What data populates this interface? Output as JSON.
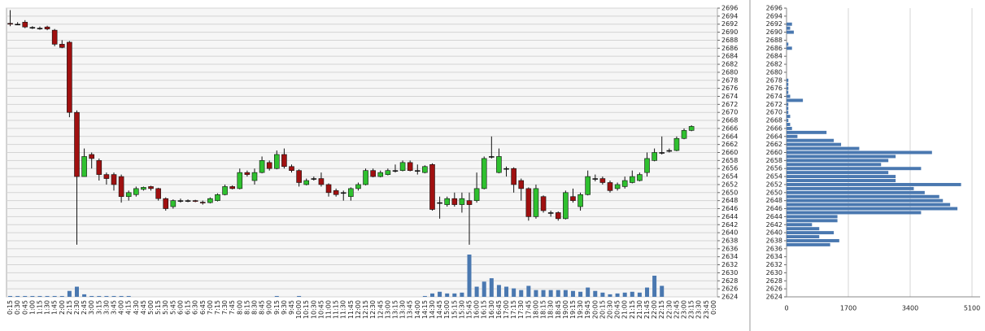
{
  "chart_data": [
    {
      "type": "candlestick",
      "categories": [
        "0:15",
        "0:30",
        "0:45",
        "1:00",
        "1:15",
        "1:30",
        "1:45",
        "2:00",
        "2:15",
        "2:30",
        "2:45",
        "3:00",
        "3:15",
        "3:30",
        "3:45",
        "4:00",
        "4:15",
        "4:30",
        "4:45",
        "5:00",
        "5:15",
        "5:30",
        "5:45",
        "6:00",
        "6:15",
        "6:30",
        "6:45",
        "7:00",
        "7:15",
        "7:30",
        "7:45",
        "8:00",
        "8:15",
        "8:30",
        "8:45",
        "9:00",
        "9:15",
        "9:30",
        "9:45",
        "10:00",
        "10:15",
        "10:30",
        "10:45",
        "11:00",
        "11:15",
        "11:30",
        "11:45",
        "12:00",
        "12:15",
        "12:30",
        "12:45",
        "13:00",
        "13:15",
        "13:30",
        "13:45",
        "14:00",
        "14:15",
        "14:30",
        "14:45",
        "15:00",
        "15:15",
        "15:30",
        "15:45",
        "16:00",
        "16:15",
        "16:30",
        "16:45",
        "17:00",
        "17:15",
        "17:30",
        "17:45",
        "18:00",
        "18:15",
        "18:30",
        "18:45",
        "19:00",
        "19:15",
        "19:30",
        "19:45",
        "20:00",
        "20:15",
        "20:30",
        "20:45",
        "21:00",
        "21:15",
        "21:30",
        "21:45",
        "22:00",
        "22:15",
        "22:30",
        "22:45",
        "23:00",
        "23:15",
        "23:30",
        "23:45",
        "0:00"
      ],
      "open": [
        2692.2,
        2692,
        2692.5,
        2691.2,
        2691,
        2691.3,
        2690.5,
        2687,
        2687.5,
        2670,
        2654,
        2659.5,
        2658,
        2654.5,
        2654.5,
        2654,
        2649,
        2649.5,
        2650.8,
        2651.5,
        2651,
        2648.5,
        2646.5,
        2648,
        2648,
        2648,
        2647.6,
        2647.5,
        2648,
        2649.5,
        2651.5,
        2651,
        2655,
        2653,
        2655,
        2657.5,
        2656,
        2659.5,
        2656.5,
        2655.5,
        2652,
        2653.5,
        2653.5,
        2652,
        2650.5,
        2650,
        2649,
        2651,
        2652,
        2655.5,
        2654,
        2654.5,
        2655.5,
        2655.5,
        2657.5,
        2655.5,
        2655,
        2657,
        2647.5,
        2647,
        2648.5,
        2647,
        2648,
        2648,
        2651,
        2659,
        2655,
        2656,
        2656,
        2653,
        2651,
        2644,
        2649,
        2645,
        2645,
        2643.5,
        2649,
        2646.5,
        2649.5,
        2653.5,
        2653.5,
        2652.5,
        2651,
        2651.5,
        2652.5,
        2653,
        2655,
        2658,
        2660,
        2660.5,
        2660.5,
        2663.5,
        2665.5,
        null,
        null,
        null
      ],
      "high": [
        2695.5,
        2692.5,
        2693,
        2691.5,
        2691.4,
        2691.6,
        2690.8,
        2688,
        2687.8,
        2670.5,
        2661,
        2660,
        2658.5,
        2655,
        2655,
        2654.5,
        2650.5,
        2651.5,
        2651.5,
        2651.7,
        2651.2,
        2648.8,
        2648.3,
        2648.5,
        2648.3,
        2648.2,
        2648,
        2648.8,
        2649.8,
        2652,
        2651.8,
        2656,
        2655.5,
        2656,
        2659,
        2658,
        2660.5,
        2661,
        2657,
        2655.8,
        2653.5,
        2654,
        2655,
        2652.3,
        2651,
        2650.5,
        2651.3,
        2652.5,
        2656,
        2656,
        2655.5,
        2656,
        2657,
        2658,
        2658,
        2657,
        2656.8,
        2657.3,
        2649,
        2649,
        2650,
        2650,
        2650,
        2655,
        2659,
        2664,
        2661,
        2656.5,
        2656.3,
        2653.5,
        2651.3,
        2652,
        2649.3,
        2645.5,
        2645.3,
        2650.5,
        2651,
        2650,
        2655.5,
        2654.5,
        2654,
        2653,
        2652.5,
        2654,
        2655.5,
        2655,
        2660,
        2661,
        2664,
        2661,
        2664,
        2666,
        2666.8,
        null,
        null,
        null
      ],
      "low": [
        2691.5,
        2691.8,
        2691,
        2690.8,
        2690.6,
        2690.5,
        2686.5,
        2686,
        2668.8,
        2637,
        2654,
        2656,
        2653,
        2652,
        2650.5,
        2647.5,
        2648,
        2649,
        2650.5,
        2650.5,
        2648,
        2645.5,
        2646,
        2647.5,
        2647.6,
        2647.6,
        2647,
        2647.3,
        2647.8,
        2649.3,
        2650.8,
        2650.8,
        2654,
        2652,
        2654.8,
        2655.5,
        2655.8,
        2656,
        2655,
        2651.5,
        2651.8,
        2653,
        2651.5,
        2649,
        2649,
        2648,
        2648,
        2650.5,
        2651.8,
        2653.8,
        2653.8,
        2654.3,
        2655,
        2655.3,
        2655.3,
        2654.5,
        2654.8,
        2645.5,
        2643.5,
        2646.5,
        2646.5,
        2645,
        2637,
        2647.5,
        2650.8,
        2658.5,
        2654.8,
        2654,
        2650,
        2648,
        2643,
        2643.5,
        2645,
        2644,
        2643,
        2643.3,
        2647.5,
        2645.5,
        2649.3,
        2652.8,
        2652,
        2650,
        2650.5,
        2651,
        2652.3,
        2652.8,
        2654,
        2657.8,
        2659.5,
        2660,
        2660.3,
        2663.3,
        2665.3,
        null,
        null,
        null
      ],
      "close": [
        2692,
        2692,
        2691.3,
        2691.2,
        2691,
        2690.8,
        2687,
        2686.2,
        2670,
        2654,
        2659,
        2658.5,
        2654.5,
        2653.5,
        2652,
        2649,
        2650,
        2651,
        2651.3,
        2651,
        2648.5,
        2646,
        2648,
        2648,
        2648,
        2647.8,
        2647.5,
        2648.5,
        2649.5,
        2651.5,
        2651,
        2655,
        2654.5,
        2655,
        2658,
        2656,
        2659.5,
        2656.5,
        2655.5,
        2652.5,
        2653,
        2653.5,
        2652,
        2650,
        2649.5,
        2650,
        2651,
        2652,
        2655.5,
        2654,
        2655,
        2655.5,
        2655.5,
        2657.5,
        2655.5,
        2655.5,
        2656.5,
        2645.8,
        2647.5,
        2648.5,
        2647,
        2648.5,
        2647,
        2651,
        2658.5,
        2659,
        2659,
        2656,
        2652,
        2651,
        2644,
        2651,
        2645.5,
        2645,
        2643.5,
        2650,
        2648,
        2649.5,
        2654,
        2653.5,
        2652.5,
        2650.5,
        2652,
        2653,
        2654,
        2654.5,
        2658.5,
        2660,
        2660,
        2660.5,
        2663.5,
        2665.5,
        2666.5,
        null,
        null,
        null
      ],
      "volume": [
        1,
        1,
        1,
        1,
        1,
        1,
        1,
        1,
        7,
        12,
        3,
        1,
        1,
        1,
        1,
        1,
        1,
        0,
        0,
        0,
        0,
        0,
        0,
        0,
        0,
        0,
        0,
        0,
        0,
        0,
        0,
        0,
        0,
        0,
        0,
        0,
        1,
        0,
        0,
        1,
        0,
        0,
        0,
        0,
        0,
        0,
        0,
        0,
        0,
        0,
        0,
        0,
        0,
        0,
        0,
        0,
        1,
        4,
        6,
        4,
        4,
        5,
        50,
        12,
        18,
        22,
        14,
        12,
        10,
        8,
        13,
        8,
        8,
        8,
        8,
        8,
        7,
        6,
        11,
        7,
        5,
        3,
        4,
        5,
        6,
        5,
        11,
        25,
        13,
        0,
        0,
        0,
        0,
        null,
        null,
        null
      ],
      "up_color": "#2fc02f",
      "down_color": "#a01010",
      "volume_color": "#4a78b0",
      "ylim": [
        2624,
        2696
      ],
      "yticks": [
        2624,
        2626,
        2628,
        2630,
        2632,
        2634,
        2636,
        2638,
        2640,
        2642,
        2644,
        2646,
        2648,
        2650,
        2652,
        2654,
        2656,
        2658,
        2660,
        2662,
        2664,
        2666,
        2668,
        2670,
        2672,
        2674,
        2676,
        2678,
        2680,
        2682,
        2684,
        2686,
        2688,
        2690,
        2692,
        2694,
        2696
      ],
      "grid": true
    },
    {
      "type": "barh",
      "y": [
        2637,
        2638,
        2639,
        2640,
        2641,
        2642,
        2643,
        2644,
        2645,
        2646,
        2647,
        2648,
        2649,
        2650,
        2651,
        2652,
        2653,
        2654,
        2655,
        2656,
        2657,
        2658,
        2659,
        2660,
        2661,
        2662,
        2663,
        2664,
        2665,
        2666,
        2667,
        2668,
        2669,
        2670,
        2671,
        2672,
        2673,
        2674,
        2675,
        2676,
        2677,
        2678,
        2679,
        2680,
        2681,
        2682,
        2683,
        2684,
        2685,
        2686,
        2687,
        2688,
        2689,
        2690,
        2691,
        2692
      ],
      "values": [
        1200,
        1450,
        900,
        1300,
        900,
        700,
        1400,
        1400,
        3700,
        4700,
        4500,
        4300,
        4200,
        3800,
        3500,
        4800,
        3000,
        3000,
        2800,
        3700,
        2600,
        2800,
        3000,
        4000,
        2000,
        1500,
        1300,
        300,
        1100,
        150,
        100,
        50,
        100,
        50,
        50,
        50,
        450,
        100,
        50,
        50,
        50,
        50,
        0,
        0,
        0,
        0,
        0,
        0,
        0,
        150,
        50,
        0,
        0,
        200,
        100,
        150
      ],
      "color": "#4a78b0",
      "xlim": [
        0,
        5100
      ],
      "xticks": [
        0,
        1700,
        3400,
        5100
      ],
      "ylim": [
        2624,
        2696
      ],
      "yticks": [
        2624,
        2626,
        2628,
        2630,
        2632,
        2634,
        2636,
        2638,
        2640,
        2642,
        2644,
        2646,
        2648,
        2650,
        2652,
        2654,
        2656,
        2658,
        2660,
        2662,
        2664,
        2666,
        2668,
        2670,
        2672,
        2674,
        2676,
        2678,
        2680,
        2682,
        2684,
        2686,
        2688,
        2690,
        2692,
        2694,
        2696
      ],
      "grid": true
    }
  ]
}
